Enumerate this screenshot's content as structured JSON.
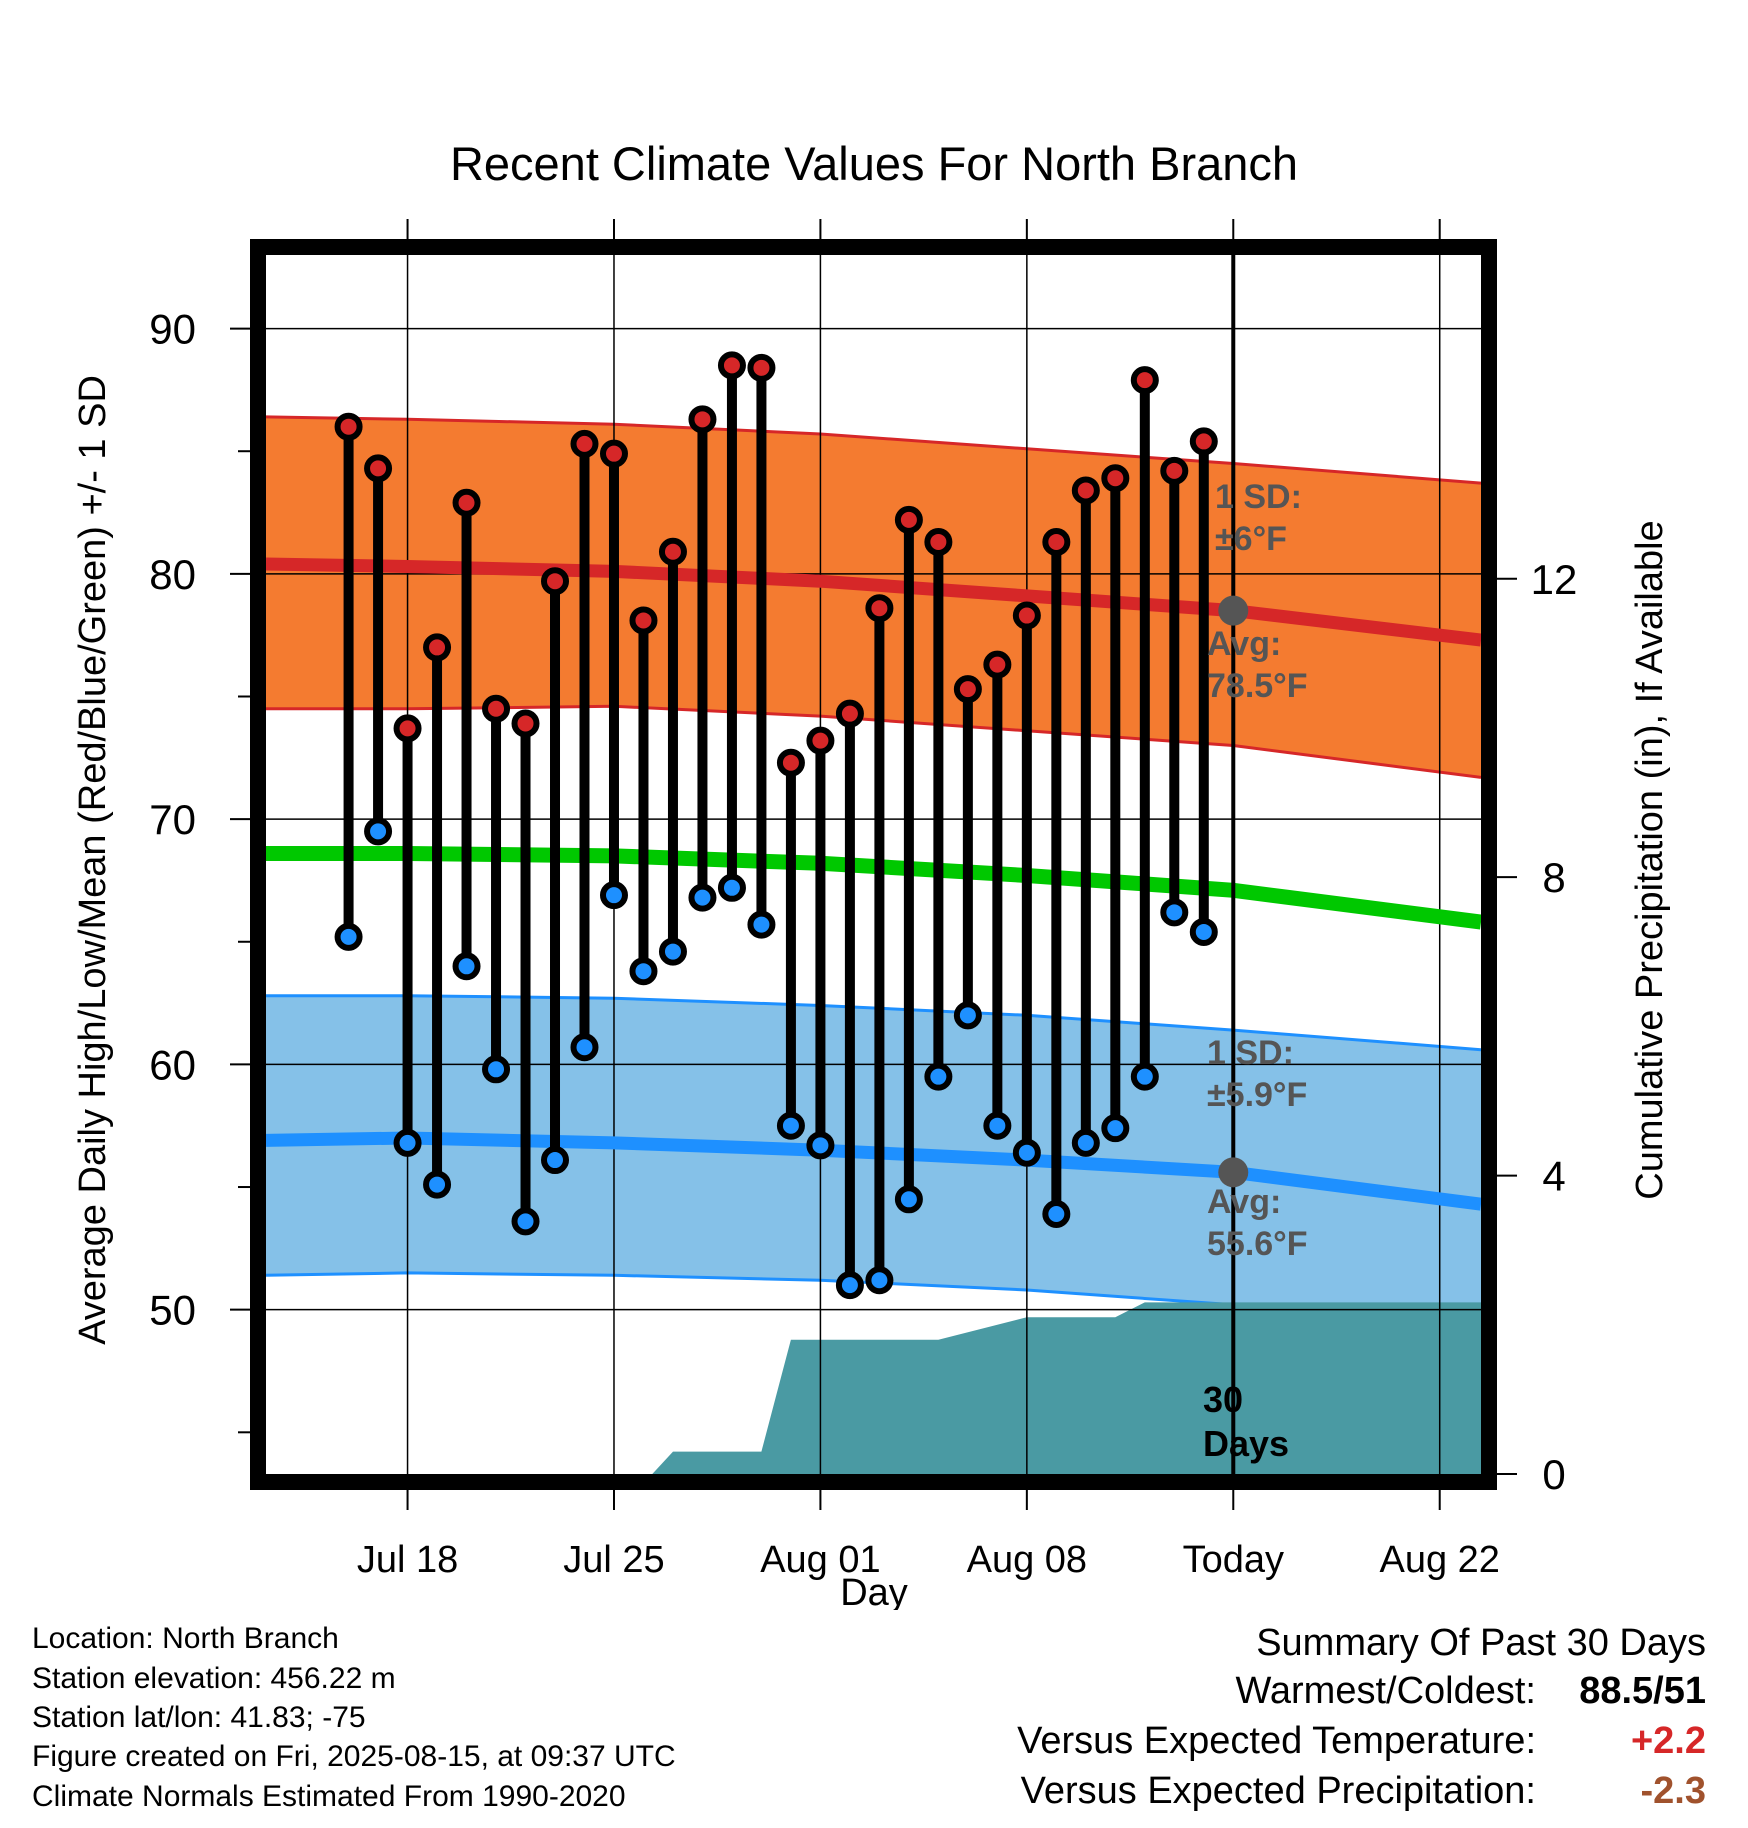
{
  "chart_data": {
    "type": "line",
    "title": "Recent Climate Values For North Branch",
    "xlabel": "Day",
    "ylabel": "Average Daily High/Low/Mean (Red/Blue/Green) +/- 1 SD",
    "y2label": "Cumulative Precipitation (in), If Available",
    "ylim": [
      43.3,
      93
    ],
    "y2lim": [
      0,
      16.34
    ],
    "xlim": [
      -4.8,
      36.4
    ],
    "x_ticks": [
      {
        "x": 0,
        "label": "Jul 18"
      },
      {
        "x": 7,
        "label": "Jul 25"
      },
      {
        "x": 14,
        "label": "Aug 01"
      },
      {
        "x": 21,
        "label": "Aug 08"
      },
      {
        "x": 28,
        "label": "Today"
      },
      {
        "x": 35,
        "label": "Aug 22"
      }
    ],
    "y_ticks": [
      50,
      60,
      70,
      80,
      90
    ],
    "y_minor_ticks": [
      45,
      55,
      65,
      75,
      85
    ],
    "y2_ticks": [
      0,
      4,
      8,
      12
    ],
    "grid": true,
    "today_x": 28,
    "colors": {
      "high": "#d62728",
      "high_band": "#f47b30",
      "low": "#1e90ff",
      "low_band": "#85c1e8",
      "mean": "#00c800",
      "precip": "#4a9aa3",
      "marker_today": "#555555",
      "annotation": "#555555"
    },
    "normal_days": [
      -4.8,
      0,
      7,
      14,
      21,
      28,
      36.4
    ],
    "normal_high": [
      80.4,
      80.3,
      80.1,
      79.7,
      79.1,
      78.5,
      77.3
    ],
    "normal_high_upper": [
      86.4,
      86.3,
      86.1,
      85.7,
      85.1,
      84.5,
      83.7
    ],
    "normal_high_lower": [
      74.5,
      74.5,
      74.6,
      74.2,
      73.6,
      73.0,
      71.7
    ],
    "normal_mean": [
      68.6,
      68.6,
      68.5,
      68.2,
      67.7,
      67.1,
      65.8
    ],
    "normal_low": [
      56.9,
      57.0,
      56.8,
      56.5,
      56.1,
      55.6,
      54.3
    ],
    "normal_low_upper": [
      62.8,
      62.8,
      62.7,
      62.4,
      62.0,
      61.4,
      60.6
    ],
    "normal_low_lower": [
      51.4,
      51.5,
      51.4,
      51.2,
      50.8,
      50.2,
      48.8
    ],
    "observed": {
      "x": [
        -2,
        -1,
        0,
        1,
        2,
        3,
        4,
        5,
        6,
        7,
        8,
        9,
        10,
        11,
        12,
        13,
        14,
        15,
        16,
        17,
        18,
        19,
        20,
        21,
        22,
        23,
        24,
        25,
        26,
        27
      ],
      "high": [
        86.0,
        84.3,
        73.7,
        77.0,
        82.9,
        74.5,
        73.9,
        79.7,
        85.3,
        84.9,
        78.1,
        80.9,
        86.3,
        88.5,
        88.4,
        72.3,
        73.2,
        74.3,
        78.6,
        82.2,
        81.3,
        75.3,
        76.3,
        78.3,
        81.3,
        83.4,
        83.9,
        87.9,
        84.2,
        85.4
      ],
      "low": [
        65.2,
        69.5,
        56.8,
        55.1,
        64.0,
        59.8,
        53.6,
        56.1,
        60.7,
        66.9,
        63.8,
        64.6,
        66.8,
        67.2,
        65.7,
        57.5,
        56.7,
        51.0,
        51.2,
        54.5,
        59.5,
        62.0,
        57.5,
        56.4,
        53.9,
        56.8,
        57.4,
        59.5,
        66.2,
        65.4
      ]
    },
    "precip_cumulative": {
      "x": [
        6.0,
        8.3,
        9.0,
        12.0,
        13.0,
        15.0,
        18.0,
        21.0,
        24.0,
        25.0,
        36.4
      ],
      "y": [
        0.0,
        0.0,
        0.3,
        0.3,
        1.8,
        1.8,
        1.8,
        2.1,
        2.1,
        2.3,
        2.3
      ]
    },
    "annotations": {
      "high_sd_line1": "1 SD:",
      "high_sd_line2": "±6°F",
      "high_avg_line1": "Avg:",
      "high_avg_line2": "78.5°F",
      "low_sd_line1": "1 SD:",
      "low_sd_line2": "±5.9°F",
      "low_avg_line1": "Avg:",
      "low_avg_line2": "55.6°F",
      "window_line1": "30",
      "window_line2": "Days"
    }
  },
  "info": {
    "location": "Location: North Branch",
    "elevation": "Station elevation: 456.22 m",
    "latlon": "Station lat/lon: 41.83; -75",
    "created": "Figure created on Fri, 2025-08-15, at 09:37 UTC",
    "normals": "Climate Normals Estimated From 1990-2020"
  },
  "summary": {
    "title": "Summary Of Past 30 Days",
    "warmest_label": "Warmest/Coldest:",
    "warmest_value": "88.5/51",
    "temp_label": "Versus Expected Temperature:",
    "temp_value": "+2.2",
    "temp_color": "#d62728",
    "precip_label": "Versus Expected Precipitation:",
    "precip_value": "-2.3",
    "precip_color": "#a0522d"
  }
}
